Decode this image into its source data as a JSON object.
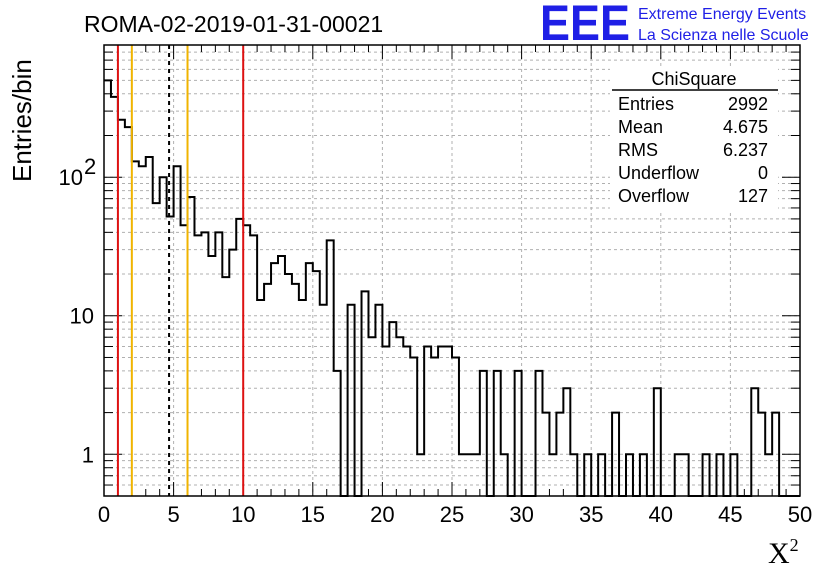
{
  "header": {
    "run_title": "ROMA-02-2019-01-31-00021",
    "logo_text": "EEE",
    "logo_line1": "Extreme Energy Events",
    "logo_line2": "La Scienza nelle Scuole"
  },
  "stats_box": {
    "title": "ChiSquare",
    "rows": [
      {
        "label": "Entries",
        "value": "2992"
      },
      {
        "label": "Mean",
        "value": "4.675"
      },
      {
        "label": "RMS",
        "value": "6.237"
      },
      {
        "label": "Underflow",
        "value": "0"
      },
      {
        "label": "Overflow",
        "value": "127"
      }
    ]
  },
  "chart_data": {
    "type": "histogram",
    "ylabel": "Entries/bin",
    "xlabel_base": "X",
    "xlabel_sup": "2",
    "xlim": [
      0,
      50
    ],
    "ylim": [
      0.5,
      900
    ],
    "yscale": "log",
    "bin_width": 0.5,
    "x_ticks": [
      0,
      5,
      10,
      15,
      20,
      25,
      30,
      35,
      40,
      45,
      50
    ],
    "y_ticks": [
      {
        "value": 1,
        "label": "1",
        "exp": ""
      },
      {
        "value": 10,
        "label": "10",
        "exp": ""
      },
      {
        "value": 100,
        "label": "10",
        "exp": "2"
      }
    ],
    "grid": true,
    "values": [
      500,
      380,
      260,
      230,
      130,
      120,
      140,
      65,
      100,
      52,
      120,
      45,
      72,
      38,
      40,
      27,
      40,
      19,
      30,
      50,
      45,
      38,
      13,
      17,
      24,
      27,
      20,
      17,
      13,
      24,
      21,
      12,
      35,
      4,
      0,
      12,
      0,
      15,
      7,
      12,
      6,
      9,
      7,
      6,
      5,
      1,
      6,
      5,
      6,
      6,
      5,
      1,
      1,
      1,
      4,
      0,
      4,
      1,
      0,
      4,
      0,
      0,
      4,
      2,
      1,
      2,
      3,
      1,
      0,
      1,
      0,
      1,
      0,
      2,
      0,
      1,
      0,
      1,
      0,
      3,
      0,
      0,
      1,
      1,
      0,
      0,
      1,
      0,
      1,
      0,
      1,
      0,
      0,
      3,
      2,
      1,
      2,
      0,
      0,
      0
    ],
    "markers": [
      {
        "x": 1,
        "color": "#dd1111",
        "style": "solid"
      },
      {
        "x": 2,
        "color": "#f0b400",
        "style": "solid"
      },
      {
        "x": 4.675,
        "color": "#000000",
        "style": "dashed"
      },
      {
        "x": 6,
        "color": "#f0b400",
        "style": "solid"
      },
      {
        "x": 10,
        "color": "#dd1111",
        "style": "solid"
      }
    ]
  }
}
